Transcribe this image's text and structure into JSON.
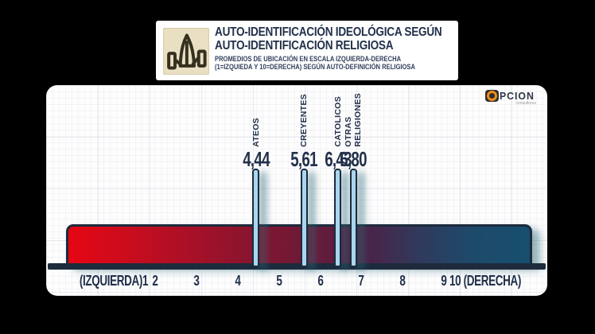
{
  "header": {
    "icon": "praying-hands-icon",
    "title_line1": "AUTO-IDENTIFICACIÓN IDEOLÓGICA SEGÚN",
    "title_line2": "AUTO-IDENTIFICACIÓN RELIGIOSA",
    "subtitle_line1": "PROMEDIOS DE UBICACIÓN EN ESCALA IZQUIERDA-DERECHA",
    "subtitle_line2": "(1=IZQUIEDA Y 10=DERECHA) SEGÚN AUTO-DEFINICIÓN RELIGIOSA"
  },
  "logo": {
    "name_rest": "PCION",
    "tagline": "consultores"
  },
  "chart_data": {
    "type": "bar",
    "title": "AUTO-IDENTIFICACIÓN IDEOLÓGICA SEGÚN AUTO-IDENTIFICACIÓN RELIGIOSA",
    "subtitle": "PROMEDIOS DE UBICACIÓN EN ESCALA IZQUIERDA-DERECHA (1=IZQUIEDA Y 10=DERECHA) SEGÚN AUTO-DEFINICIÓN RELIGIOSA",
    "categories": [
      "ATEOS",
      "CREYENTES",
      "CATOLICOS",
      "OTRAS\nRELIGIONES"
    ],
    "values": [
      4.44,
      5.61,
      6.43,
      6.8
    ],
    "value_labels": [
      "4,44",
      "5,61",
      "6,43",
      "6,80"
    ],
    "axis": {
      "min": 1,
      "max": 10,
      "tick_labels": [
        "(IZQUIERDA)1",
        "2",
        "3",
        "4",
        "5",
        "6",
        "7",
        "8",
        "9",
        "10 (DERECHA)"
      ],
      "left_anchor_label": "(IZQUIERDA)",
      "right_anchor_label": "(DERECHA)"
    },
    "legend_position": "none",
    "grid": true,
    "colors": {
      "scale_gradient_left": "#e60613",
      "scale_gradient_right": "#174e6e",
      "marker_fill": "#a9d6ee",
      "outline_navy": "#1d2b3d",
      "text_navy": "#22304a",
      "shadow_teal": "#2c6978",
      "logo_orange": "#ef8c1d",
      "icon_tan": "#e9dfc2"
    }
  }
}
